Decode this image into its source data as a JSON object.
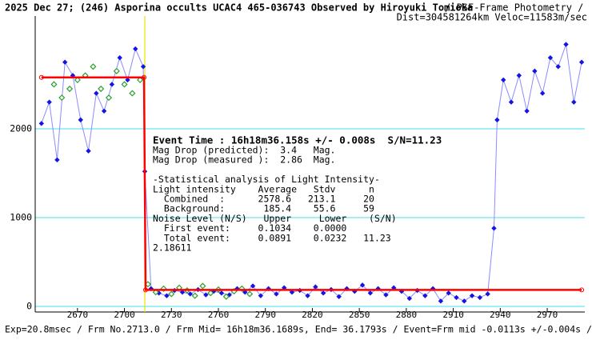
{
  "chart_data": {
    "type": "light-curve",
    "title": "2025 Dec 27; (246) Asporina occults UCAC4 465-036743 Observed by Hiroyuki Tomioka",
    "subtitle": "/ PSF-Frame Photometry /",
    "subtitle2": "Dist=304581264km Veloc=11583m/sec",
    "footer": "Exp=20.8msec / Frm No.2713.0 / Frm Mid= 16h18m36.1689s, End= 36.1793s / Event=Frm mid -0.0113s +/-0.004s / CctAngle=0.0deg",
    "event_line": "Event Time : 16h18m36.158s +/- 0.008s  S/N=11.23",
    "annotations": [
      "Mag Drop (predicted):  3.4   Mag.",
      "Mag Drop (measured ):  2.86  Mag.",
      "",
      "-Statistical analysis of Light Intensity-",
      "Light intensity    Average   Stdv      n",
      "  Combined  :      2578.6   213.1     20",
      "  Background:       185.4    55.6     59",
      "Noise Level (N/S)   Upper     Lower    (S/N)",
      "  First event:     0.1034    0.0000",
      "  Total event:     0.0891    0.0232   11.23",
      "2.18611"
    ],
    "event_frame": 2713,
    "xlim": [
      2643,
      2994
    ],
    "ylim": [
      -63,
      3270
    ],
    "xticks": [
      2670,
      2700,
      2730,
      2760,
      2790,
      2820,
      2850,
      2880,
      2910,
      2940,
      2970
    ],
    "yticks": [
      0,
      1000,
      2000
    ],
    "grid": true,
    "series": [
      {
        "name": "observed",
        "color": "#1414e6",
        "x": [
          2647,
          2652,
          2657,
          2662,
          2667,
          2672,
          2677,
          2682,
          2687,
          2692,
          2697,
          2702,
          2707,
          2712,
          2713,
          2717,
          2722,
          2727,
          2732,
          2737,
          2742,
          2747,
          2752,
          2757,
          2762,
          2767,
          2772,
          2777,
          2782,
          2787,
          2792,
          2797,
          2802,
          2807,
          2812,
          2817,
          2822,
          2827,
          2832,
          2837,
          2842,
          2847,
          2852,
          2857,
          2862,
          2867,
          2872,
          2877,
          2882,
          2887,
          2892,
          2897,
          2902,
          2907,
          2912,
          2917,
          2922,
          2927,
          2932,
          2936,
          2938,
          2942,
          2947,
          2952,
          2957,
          2962,
          2967,
          2972,
          2977,
          2982,
          2987,
          2992
        ],
        "values": [
          2060,
          2300,
          1650,
          2750,
          2600,
          2100,
          1750,
          2400,
          2200,
          2500,
          2800,
          2550,
          2900,
          2700,
          1520,
          200,
          150,
          120,
          180,
          160,
          140,
          190,
          130,
          170,
          150,
          130,
          200,
          160,
          230,
          120,
          200,
          140,
          210,
          160,
          180,
          120,
          220,
          150,
          190,
          110,
          200,
          170,
          240,
          150,
          200,
          130,
          210,
          170,
          90,
          180,
          120,
          200,
          60,
          150,
          100,
          60,
          120,
          100,
          140,
          880,
          2100,
          2550,
          2300,
          2600,
          2200,
          2650,
          2400,
          2800,
          2700,
          2950,
          2300,
          2750
        ]
      },
      {
        "name": "comparison",
        "color": "#2ca02c",
        "x": [
          2655,
          2660,
          2665,
          2670,
          2675,
          2680,
          2685,
          2690,
          2695,
          2700,
          2705,
          2710,
          2715,
          2720,
          2725,
          2730,
          2735,
          2740,
          2745,
          2750,
          2755,
          2760,
          2765,
          2770,
          2775,
          2780
        ],
        "values": [
          2500,
          2350,
          2450,
          2550,
          2600,
          2700,
          2450,
          2350,
          2650,
          2500,
          2400,
          2550,
          250,
          160,
          200,
          140,
          210,
          180,
          120,
          230,
          150,
          190,
          110,
          170,
          200,
          140
        ]
      },
      {
        "name": "model",
        "color": "#ff0000",
        "x": [
          2647,
          2712.5,
          2713.5,
          2992
        ],
        "values": [
          2578.6,
          2578.6,
          185.4,
          185.4
        ]
      }
    ]
  }
}
